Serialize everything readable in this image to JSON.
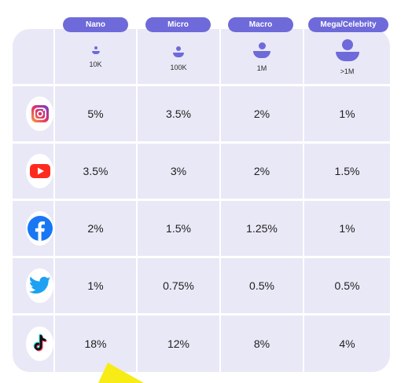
{
  "tiers": [
    {
      "label": "Nano",
      "followers": "10K"
    },
    {
      "label": "Micro",
      "followers": "100K"
    },
    {
      "label": "Macro",
      "followers": "1M"
    },
    {
      "label": "Mega/Celebrity",
      "followers": ">1M"
    }
  ],
  "rows": [
    {
      "platform_icon": "instagram-icon",
      "values": [
        "5%",
        "3.5%",
        "2%",
        "1%"
      ]
    },
    {
      "platform_icon": "youtube-icon",
      "values": [
        "3.5%",
        "3%",
        "2%",
        "1.5%"
      ]
    },
    {
      "platform_icon": "facebook-icon",
      "values": [
        "2%",
        "1.5%",
        "1.25%",
        "1%"
      ]
    },
    {
      "platform_icon": "twitter-icon",
      "values": [
        "1%",
        "0.75%",
        "0.5%",
        "0.5%"
      ]
    },
    {
      "platform_icon": "tiktok-icon",
      "values": [
        "18%",
        "12%",
        "8%",
        "4%"
      ]
    }
  ],
  "colors": {
    "accent": "#6f6ad9",
    "cell": "#e9e8f6",
    "highlight": "#f7ec16"
  }
}
